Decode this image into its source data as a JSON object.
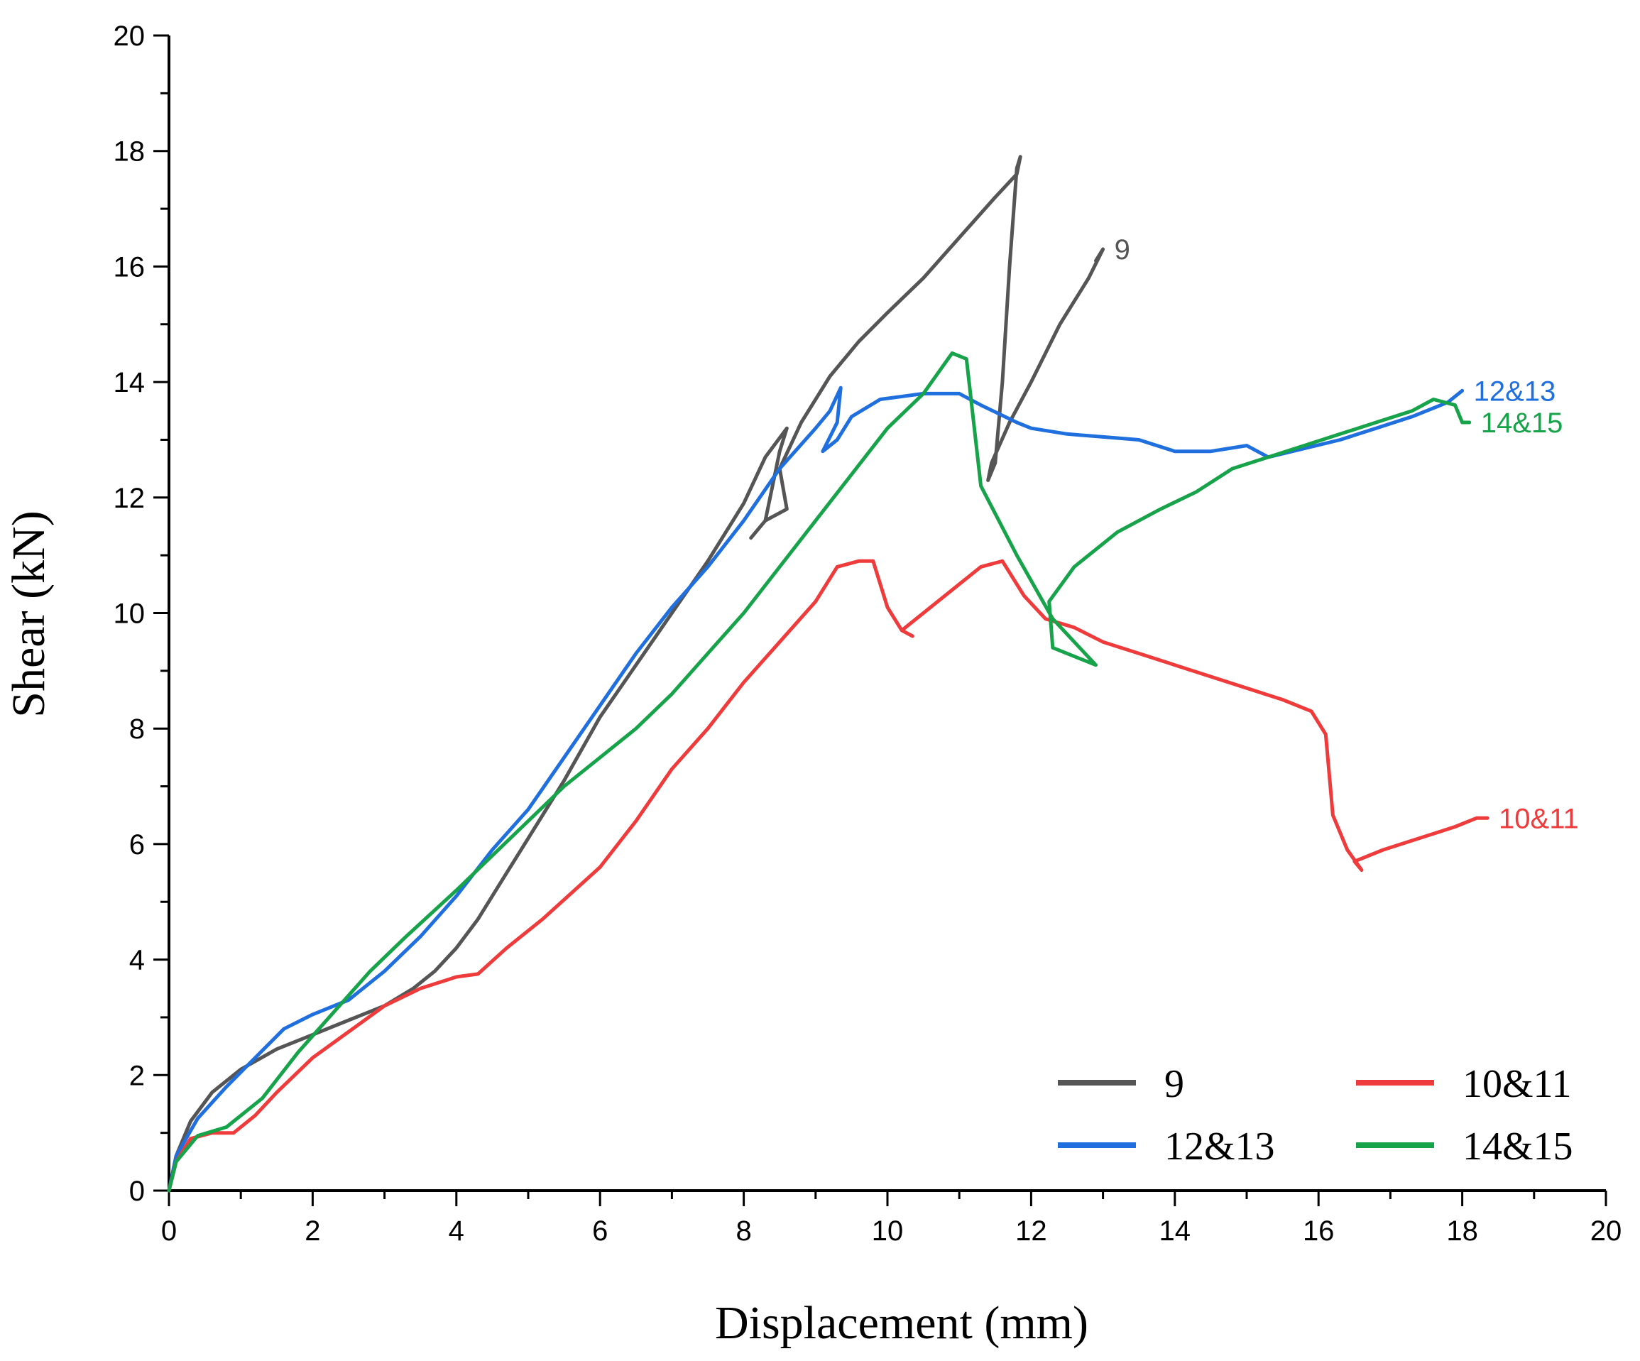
{
  "chart_data": {
    "type": "line",
    "title": "",
    "xlabel": "Displacement (mm)",
    "ylabel": "Shear (kN)",
    "xlim": [
      0,
      20
    ],
    "ylim": [
      0,
      20
    ],
    "xticks": [
      0,
      2,
      4,
      6,
      8,
      10,
      12,
      14,
      16,
      18,
      20
    ],
    "yticks": [
      0,
      2,
      4,
      6,
      8,
      10,
      12,
      14,
      16,
      18,
      20
    ],
    "grid": false,
    "legend_position": "bottom-right",
    "series": [
      {
        "name": "9",
        "color": "#555555",
        "end_label": "9",
        "points": [
          [
            0,
            0
          ],
          [
            0.1,
            0.6
          ],
          [
            0.3,
            1.2
          ],
          [
            0.6,
            1.7
          ],
          [
            1.0,
            2.1
          ],
          [
            1.5,
            2.45
          ],
          [
            2.0,
            2.7
          ],
          [
            2.5,
            2.95
          ],
          [
            3.0,
            3.2
          ],
          [
            3.4,
            3.5
          ],
          [
            3.7,
            3.8
          ],
          [
            4.0,
            4.2
          ],
          [
            4.3,
            4.7
          ],
          [
            4.6,
            5.3
          ],
          [
            5.0,
            6.1
          ],
          [
            5.5,
            7.1
          ],
          [
            6.0,
            8.2
          ],
          [
            6.5,
            9.1
          ],
          [
            7.0,
            10.0
          ],
          [
            7.5,
            10.9
          ],
          [
            8.0,
            11.9
          ],
          [
            8.3,
            12.7
          ],
          [
            8.6,
            13.2
          ],
          [
            8.5,
            12.8
          ],
          [
            8.3,
            11.6
          ],
          [
            8.1,
            11.3
          ],
          [
            8.3,
            11.6
          ],
          [
            8.6,
            11.8
          ],
          [
            8.5,
            12.5
          ],
          [
            8.8,
            13.3
          ],
          [
            9.2,
            14.1
          ],
          [
            9.6,
            14.7
          ],
          [
            10.0,
            15.2
          ],
          [
            10.5,
            15.8
          ],
          [
            11.0,
            16.5
          ],
          [
            11.5,
            17.2
          ],
          [
            11.8,
            17.6
          ],
          [
            11.85,
            17.9
          ],
          [
            11.8,
            17.7
          ],
          [
            11.7,
            16.0
          ],
          [
            11.6,
            14.0
          ],
          [
            11.5,
            12.6
          ],
          [
            11.4,
            12.3
          ],
          [
            11.45,
            12.6
          ],
          [
            11.7,
            13.3
          ],
          [
            12.0,
            14.0
          ],
          [
            12.4,
            15.0
          ],
          [
            12.8,
            15.8
          ],
          [
            13.0,
            16.3
          ],
          [
            12.9,
            16.1
          ]
        ]
      },
      {
        "name": "10&11",
        "color": "#ef3b3b",
        "end_label": "10&11",
        "points": [
          [
            0,
            0
          ],
          [
            0.1,
            0.5
          ],
          [
            0.3,
            0.9
          ],
          [
            0.6,
            1.0
          ],
          [
            0.9,
            1.0
          ],
          [
            1.2,
            1.3
          ],
          [
            1.5,
            1.7
          ],
          [
            2.0,
            2.3
          ],
          [
            2.5,
            2.75
          ],
          [
            3.0,
            3.2
          ],
          [
            3.5,
            3.5
          ],
          [
            4.0,
            3.7
          ],
          [
            4.3,
            3.75
          ],
          [
            4.7,
            4.2
          ],
          [
            5.2,
            4.7
          ],
          [
            6.0,
            5.6
          ],
          [
            6.5,
            6.4
          ],
          [
            7.0,
            7.3
          ],
          [
            7.5,
            8.0
          ],
          [
            8.0,
            8.8
          ],
          [
            8.5,
            9.5
          ],
          [
            9.0,
            10.2
          ],
          [
            9.3,
            10.8
          ],
          [
            9.6,
            10.9
          ],
          [
            9.8,
            10.9
          ],
          [
            10.0,
            10.1
          ],
          [
            10.2,
            9.7
          ],
          [
            10.35,
            9.6
          ],
          [
            10.2,
            9.7
          ],
          [
            10.5,
            10.0
          ],
          [
            11.0,
            10.5
          ],
          [
            11.3,
            10.8
          ],
          [
            11.6,
            10.9
          ],
          [
            11.9,
            10.3
          ],
          [
            12.2,
            9.9
          ],
          [
            12.6,
            9.75
          ],
          [
            13.0,
            9.5
          ],
          [
            13.5,
            9.3
          ],
          [
            14.0,
            9.1
          ],
          [
            14.5,
            8.9
          ],
          [
            15.0,
            8.7
          ],
          [
            15.5,
            8.5
          ],
          [
            15.9,
            8.3
          ],
          [
            16.1,
            7.9
          ],
          [
            16.2,
            6.5
          ],
          [
            16.4,
            5.9
          ],
          [
            16.6,
            5.55
          ],
          [
            16.5,
            5.7
          ],
          [
            16.9,
            5.9
          ],
          [
            17.4,
            6.1
          ],
          [
            17.9,
            6.3
          ],
          [
            18.2,
            6.45
          ],
          [
            18.35,
            6.45
          ]
        ]
      },
      {
        "name": "12&13",
        "color": "#1f6fdf",
        "end_label": "12&13",
        "points": [
          [
            0,
            0
          ],
          [
            0.1,
            0.6
          ],
          [
            0.4,
            1.25
          ],
          [
            0.8,
            1.8
          ],
          [
            1.2,
            2.3
          ],
          [
            1.6,
            2.8
          ],
          [
            2.0,
            3.05
          ],
          [
            2.5,
            3.3
          ],
          [
            3.0,
            3.8
          ],
          [
            3.5,
            4.4
          ],
          [
            4.0,
            5.1
          ],
          [
            4.5,
            5.9
          ],
          [
            5.0,
            6.6
          ],
          [
            5.5,
            7.5
          ],
          [
            6.0,
            8.4
          ],
          [
            6.5,
            9.3
          ],
          [
            7.0,
            10.1
          ],
          [
            7.5,
            10.8
          ],
          [
            8.0,
            11.6
          ],
          [
            8.5,
            12.5
          ],
          [
            9.0,
            13.2
          ],
          [
            9.2,
            13.5
          ],
          [
            9.35,
            13.9
          ],
          [
            9.3,
            13.3
          ],
          [
            9.1,
            12.8
          ],
          [
            9.3,
            13.0
          ],
          [
            9.5,
            13.4
          ],
          [
            9.9,
            13.7
          ],
          [
            10.5,
            13.8
          ],
          [
            11.0,
            13.8
          ],
          [
            11.3,
            13.6
          ],
          [
            11.8,
            13.3
          ],
          [
            12.0,
            13.2
          ],
          [
            12.5,
            13.1
          ],
          [
            13.0,
            13.05
          ],
          [
            13.5,
            13.0
          ],
          [
            14.0,
            12.8
          ],
          [
            14.5,
            12.8
          ],
          [
            15.0,
            12.9
          ],
          [
            15.3,
            12.7
          ],
          [
            15.8,
            12.85
          ],
          [
            16.3,
            13.0
          ],
          [
            16.8,
            13.2
          ],
          [
            17.3,
            13.4
          ],
          [
            17.8,
            13.65
          ],
          [
            18.0,
            13.85
          ]
        ]
      },
      {
        "name": "14&15",
        "color": "#16a34a",
        "end_label": "14&15",
        "points": [
          [
            0,
            0
          ],
          [
            0.1,
            0.5
          ],
          [
            0.4,
            0.95
          ],
          [
            0.8,
            1.1
          ],
          [
            1.3,
            1.6
          ],
          [
            1.8,
            2.4
          ],
          [
            2.3,
            3.1
          ],
          [
            2.8,
            3.8
          ],
          [
            3.3,
            4.4
          ],
          [
            4.0,
            5.2
          ],
          [
            4.5,
            5.8
          ],
          [
            5.0,
            6.4
          ],
          [
            5.5,
            7.0
          ],
          [
            6.0,
            7.5
          ],
          [
            6.5,
            8.0
          ],
          [
            7.0,
            8.6
          ],
          [
            7.5,
            9.3
          ],
          [
            8.0,
            10.0
          ],
          [
            8.5,
            10.8
          ],
          [
            9.0,
            11.6
          ],
          [
            9.5,
            12.4
          ],
          [
            10.0,
            13.2
          ],
          [
            10.5,
            13.8
          ],
          [
            10.9,
            14.5
          ],
          [
            11.1,
            14.4
          ],
          [
            11.3,
            12.2
          ],
          [
            11.8,
            11.0
          ],
          [
            12.3,
            9.9
          ],
          [
            12.9,
            9.1
          ],
          [
            12.3,
            9.4
          ],
          [
            12.25,
            10.2
          ],
          [
            12.6,
            10.8
          ],
          [
            13.2,
            11.4
          ],
          [
            13.8,
            11.8
          ],
          [
            14.3,
            12.1
          ],
          [
            14.8,
            12.5
          ],
          [
            15.3,
            12.7
          ],
          [
            15.8,
            12.9
          ],
          [
            16.3,
            13.1
          ],
          [
            16.8,
            13.3
          ],
          [
            17.3,
            13.5
          ],
          [
            17.6,
            13.7
          ],
          [
            17.9,
            13.6
          ],
          [
            18.0,
            13.3
          ],
          [
            18.1,
            13.3
          ]
        ]
      }
    ]
  }
}
